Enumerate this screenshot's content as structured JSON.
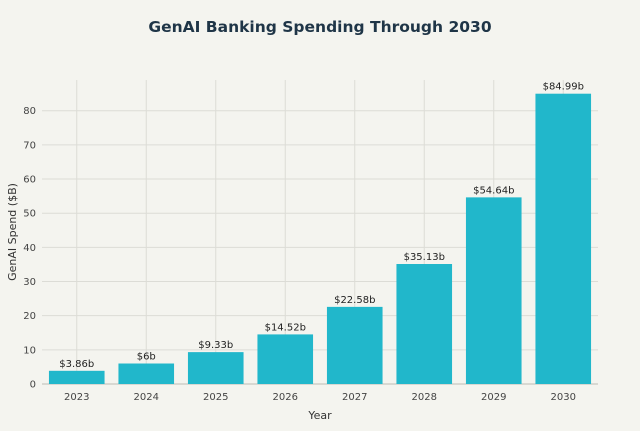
{
  "chart_data": {
    "type": "bar",
    "title": "GenAI Banking Spending Through 2030",
    "xlabel": "Year",
    "ylabel": "GenAI Spend ($B)",
    "categories": [
      "2023",
      "2024",
      "2025",
      "2026",
      "2027",
      "2028",
      "2029",
      "2030"
    ],
    "values": [
      3.86,
      6,
      9.33,
      14.52,
      22.58,
      35.13,
      54.64,
      84.99
    ],
    "data_labels": [
      "$3.86b",
      "$6b",
      "$9.33b",
      "$14.52b",
      "$22.58b",
      "$35.13b",
      "$54.64b",
      "$84.99b"
    ],
    "ylim": [
      0,
      89
    ],
    "yticks": [
      0,
      10,
      20,
      30,
      40,
      50,
      60,
      70,
      80
    ],
    "grid": true,
    "colors": {
      "bar": "#21b7cb",
      "grid": "#dcdcd6",
      "background": "#f4f4ef",
      "title": "#1f3547"
    }
  }
}
